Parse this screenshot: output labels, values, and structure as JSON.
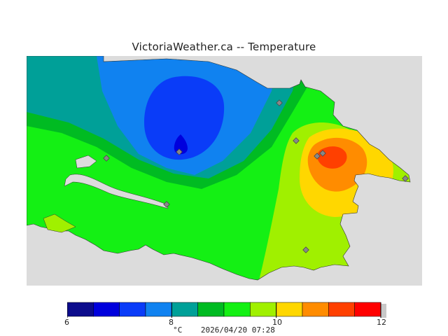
{
  "title": "VictoriaWeather.ca -- Temperature",
  "legend": {
    "min": 6,
    "max": 12,
    "ticks": [
      {
        "value": 6,
        "label": "6"
      },
      {
        "value": 8,
        "label": "8"
      },
      {
        "value": 10,
        "label": "10"
      },
      {
        "value": 12,
        "label": "12"
      }
    ],
    "colors": [
      "#0c0c8c",
      "#0000dd",
      "#0a3cf8",
      "#1082f0",
      "#00a098",
      "#00bb22",
      "#14f014",
      "#a0f000",
      "#ffd700",
      "#ff8c00",
      "#ff4000",
      "#ff0000"
    ],
    "unit": "°C",
    "timestamp": "2026/04/20 07:28"
  },
  "map": {
    "background": "#dcdcdc",
    "station_count": 9
  }
}
